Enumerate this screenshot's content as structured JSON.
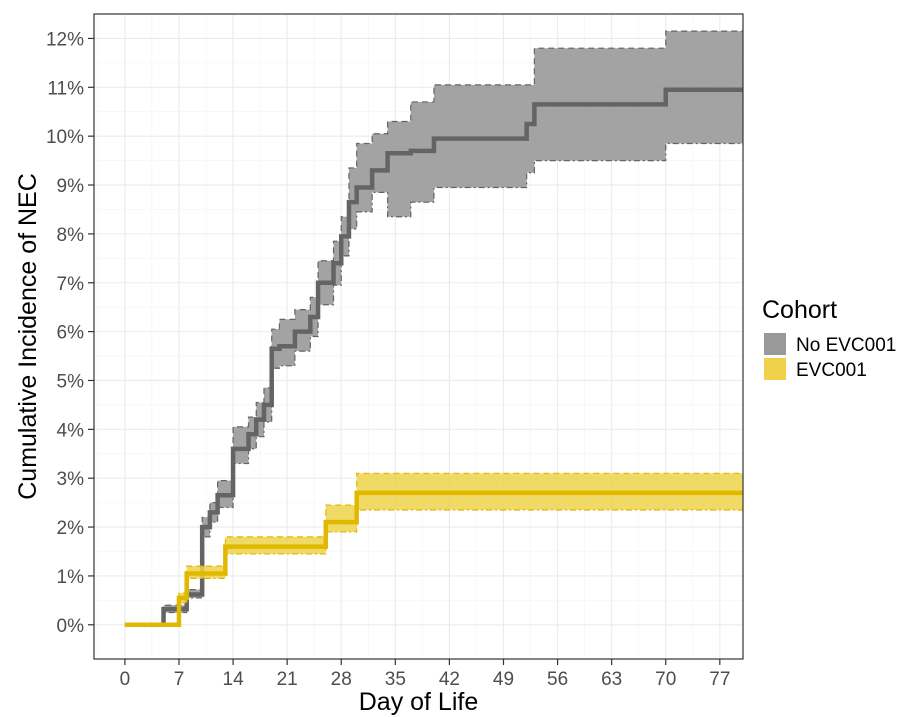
{
  "chart_data": {
    "type": "line",
    "subtype": "step-with-confidence-band",
    "xlabel": "Day of Life",
    "ylabel": "Cumulative Incidence of NEC",
    "xlim": [
      -4,
      80
    ],
    "ylim": [
      -0.7,
      12.5
    ],
    "x_ticks": [
      0,
      7,
      14,
      21,
      28,
      35,
      42,
      49,
      56,
      63,
      70,
      77
    ],
    "y_ticks": [
      0,
      1,
      2,
      3,
      4,
      5,
      6,
      7,
      8,
      9,
      10,
      11,
      12
    ],
    "y_tick_labels": [
      "0%",
      "1%",
      "2%",
      "3%",
      "4%",
      "5%",
      "6%",
      "7%",
      "8%",
      "9%",
      "10%",
      "11%",
      "12%"
    ],
    "x_tick_labels": [
      "0",
      "7",
      "14",
      "21",
      "28",
      "35",
      "42",
      "49",
      "56",
      "63",
      "70",
      "77"
    ],
    "grid": true,
    "legend": {
      "title": "Cohort",
      "position": "right"
    },
    "series": [
      {
        "name": "No EVC001",
        "color": "#646464",
        "fill": "#999999",
        "points": [
          {
            "x": 0,
            "y": 0,
            "lo": 0,
            "hi": 0
          },
          {
            "x": 5,
            "y": 0.32,
            "lo": 0.25,
            "hi": 0.4
          },
          {
            "x": 8,
            "y": 0.62,
            "lo": 0.55,
            "hi": 0.72
          },
          {
            "x": 10,
            "y": 2.0,
            "lo": 1.8,
            "hi": 2.2
          },
          {
            "x": 11,
            "y": 2.3,
            "lo": 2.1,
            "hi": 2.5
          },
          {
            "x": 12,
            "y": 2.65,
            "lo": 2.4,
            "hi": 2.95
          },
          {
            "x": 14,
            "y": 3.6,
            "lo": 3.3,
            "hi": 4.05
          },
          {
            "x": 16,
            "y": 3.9,
            "lo": 3.6,
            "hi": 4.25
          },
          {
            "x": 17,
            "y": 4.2,
            "lo": 3.85,
            "hi": 4.55
          },
          {
            "x": 18,
            "y": 4.5,
            "lo": 4.15,
            "hi": 4.85
          },
          {
            "x": 19,
            "y": 5.65,
            "lo": 5.25,
            "hi": 6.05
          },
          {
            "x": 20,
            "y": 5.7,
            "lo": 5.3,
            "hi": 6.25
          },
          {
            "x": 22,
            "y": 6.0,
            "lo": 5.6,
            "hi": 6.45
          },
          {
            "x": 24,
            "y": 6.3,
            "lo": 5.9,
            "hi": 6.7
          },
          {
            "x": 25,
            "y": 7.0,
            "lo": 6.55,
            "hi": 7.45
          },
          {
            "x": 27,
            "y": 7.4,
            "lo": 6.95,
            "hi": 7.85
          },
          {
            "x": 28,
            "y": 7.95,
            "lo": 7.55,
            "hi": 8.35
          },
          {
            "x": 29,
            "y": 8.65,
            "lo": 8.1,
            "hi": 9.35
          },
          {
            "x": 30,
            "y": 8.95,
            "lo": 8.45,
            "hi": 9.85
          },
          {
            "x": 32,
            "y": 9.3,
            "lo": 8.85,
            "hi": 10.05
          },
          {
            "x": 34,
            "y": 9.65,
            "lo": 8.35,
            "hi": 10.3
          },
          {
            "x": 37,
            "y": 9.7,
            "lo": 8.65,
            "hi": 10.7
          },
          {
            "x": 40,
            "y": 9.95,
            "lo": 8.95,
            "hi": 11.05
          },
          {
            "x": 52,
            "y": 10.25,
            "lo": 9.25,
            "hi": 11.05
          },
          {
            "x": 53,
            "y": 10.65,
            "lo": 9.5,
            "hi": 11.8
          },
          {
            "x": 70,
            "y": 10.95,
            "lo": 9.85,
            "hi": 12.15
          }
        ]
      },
      {
        "name": "EVC001",
        "color": "#E0B800",
        "fill": "#EFD24A",
        "points": [
          {
            "x": 0,
            "y": 0,
            "lo": 0,
            "hi": 0
          },
          {
            "x": 7,
            "y": 0.55,
            "lo": 0.45,
            "hi": 0.65
          },
          {
            "x": 8,
            "y": 1.05,
            "lo": 0.95,
            "hi": 1.2
          },
          {
            "x": 13,
            "y": 1.6,
            "lo": 1.45,
            "hi": 1.8
          },
          {
            "x": 26,
            "y": 2.1,
            "lo": 1.9,
            "hi": 2.45
          },
          {
            "x": 30,
            "y": 2.7,
            "lo": 2.35,
            "hi": 3.1
          }
        ]
      }
    ],
    "x_end": 80
  }
}
